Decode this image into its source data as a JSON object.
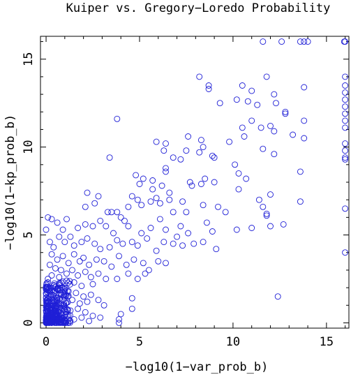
{
  "colors": {
    "marker": "#1f1fd6",
    "axis": "#000000",
    "background": "#ffffff"
  },
  "chart_data": {
    "type": "scatter",
    "title": "Kuiper vs. Gregory−Loredo Probability",
    "xlabel": "−log10(1−var_prob_b)",
    "ylabel": "−log10(1−kp_prob_b)",
    "xlim": [
      -0.3,
      16.2
    ],
    "ylim": [
      -0.3,
      16.3
    ],
    "xticks": [
      0,
      5,
      10,
      15
    ],
    "yticks": [
      0,
      5,
      10,
      15
    ],
    "grid": false,
    "legend": "none",
    "marker": "open-circle",
    "points": [
      [
        11.6,
        16.0
      ],
      [
        12.6,
        16.0
      ],
      [
        13.6,
        16.0
      ],
      [
        13.8,
        16.0
      ],
      [
        14.0,
        16.0
      ],
      [
        16.0,
        16.0
      ],
      [
        15.95,
        16.0
      ],
      [
        8.2,
        14.0
      ],
      [
        11.8,
        14.0
      ],
      [
        8.7,
        13.5
      ],
      [
        8.7,
        13.3
      ],
      [
        10.5,
        13.5
      ],
      [
        11.0,
        13.2
      ],
      [
        12.2,
        13.0
      ],
      [
        13.8,
        13.4
      ],
      [
        16.0,
        14.0
      ],
      [
        16.0,
        13.5
      ],
      [
        16.0,
        13.1
      ],
      [
        16.0,
        12.7
      ],
      [
        16.0,
        12.3
      ],
      [
        16.0,
        11.9
      ],
      [
        16.0,
        11.5
      ],
      [
        16.0,
        11.1
      ],
      [
        16.0,
        10.2
      ],
      [
        16.0,
        9.8
      ],
      [
        16.0,
        9.4
      ],
      [
        16.0,
        9.3
      ],
      [
        16.0,
        6.5
      ],
      [
        16.0,
        4.0
      ],
      [
        9.3,
        12.5
      ],
      [
        10.2,
        12.7
      ],
      [
        10.8,
        12.6
      ],
      [
        11.3,
        12.4
      ],
      [
        12.3,
        12.5
      ],
      [
        12.8,
        12.0
      ],
      [
        12.8,
        11.9
      ],
      [
        13.8,
        11.5
      ],
      [
        3.8,
        11.6
      ],
      [
        7.6,
        10.6
      ],
      [
        8.3,
        10.4
      ],
      [
        8.4,
        10.0
      ],
      [
        9.8,
        10.3
      ],
      [
        10.5,
        11.1
      ],
      [
        11.0,
        11.5
      ],
      [
        11.5,
        11.1
      ],
      [
        12.0,
        11.2
      ],
      [
        12.2,
        10.9
      ],
      [
        13.2,
        10.7
      ],
      [
        13.8,
        10.5
      ],
      [
        10.6,
        10.6
      ],
      [
        5.9,
        10.3
      ],
      [
        6.4,
        10.2
      ],
      [
        6.3,
        9.8
      ],
      [
        7.5,
        9.8
      ],
      [
        6.8,
        9.4
      ],
      [
        7.2,
        9.3
      ],
      [
        8.2,
        9.7
      ],
      [
        8.9,
        9.5
      ],
      [
        9.0,
        9.4
      ],
      [
        10.1,
        9.0
      ],
      [
        11.6,
        9.9
      ],
      [
        12.2,
        9.6
      ],
      [
        13.6,
        8.6
      ],
      [
        3.4,
        9.4
      ],
      [
        4.8,
        8.4
      ],
      [
        5.2,
        8.2
      ],
      [
        5.7,
        8.1
      ],
      [
        6.4,
        8.8
      ],
      [
        6.4,
        8.6
      ],
      [
        5.0,
        7.9
      ],
      [
        5.7,
        7.6
      ],
      [
        6.2,
        7.8
      ],
      [
        6.6,
        7.4
      ],
      [
        7.7,
        8.0
      ],
      [
        7.8,
        7.8
      ],
      [
        8.3,
        7.9
      ],
      [
        8.5,
        8.2
      ],
      [
        9.0,
        8.0
      ],
      [
        10.3,
        8.5
      ],
      [
        10.7,
        8.2
      ],
      [
        2.2,
        7.4
      ],
      [
        2.1,
        6.6
      ],
      [
        2.6,
        6.8
      ],
      [
        2.8,
        7.2
      ],
      [
        3.3,
        6.3
      ],
      [
        3.5,
        6.3
      ],
      [
        3.8,
        6.3
      ],
      [
        4.0,
        6.0
      ],
      [
        4.4,
        6.6
      ],
      [
        4.6,
        7.2
      ],
      [
        4.9,
        7.0
      ],
      [
        5.1,
        6.7
      ],
      [
        5.6,
        6.9
      ],
      [
        5.9,
        7.1
      ],
      [
        6.1,
        6.8
      ],
      [
        6.6,
        7.0
      ],
      [
        6.8,
        6.3
      ],
      [
        7.3,
        6.9
      ],
      [
        7.5,
        6.3
      ],
      [
        8.4,
        6.7
      ],
      [
        8.6,
        5.7
      ],
      [
        9.2,
        6.6
      ],
      [
        10.3,
        7.6
      ],
      [
        11.6,
        6.6
      ],
      [
        11.8,
        6.1
      ],
      [
        12.0,
        7.3
      ],
      [
        12.0,
        5.5
      ],
      [
        12.7,
        5.6
      ],
      [
        13.6,
        6.9
      ],
      [
        11.8,
        6.2
      ],
      [
        11.4,
        7.0
      ],
      [
        0.1,
        6.0
      ],
      [
        0.3,
        5.9
      ],
      [
        0.6,
        5.7
      ],
      [
        1.1,
        5.9
      ],
      [
        0.9,
        5.3
      ],
      [
        1.7,
        5.4
      ],
      [
        2.1,
        5.6
      ],
      [
        2.5,
        5.5
      ],
      [
        2.9,
        5.8
      ],
      [
        3.2,
        5.5
      ],
      [
        3.6,
        5.1
      ],
      [
        4.2,
        5.8
      ],
      [
        4.4,
        5.5
      ],
      [
        5.1,
        5.1
      ],
      [
        5.6,
        5.4
      ],
      [
        6.1,
        5.9
      ],
      [
        6.4,
        5.3
      ],
      [
        7.0,
        4.9
      ],
      [
        7.2,
        5.5
      ],
      [
        7.6,
        5.1
      ],
      [
        8.4,
        4.6
      ],
      [
        8.9,
        5.2
      ],
      [
        9.6,
        6.3
      ],
      [
        10.2,
        5.3
      ],
      [
        11.0,
        5.4
      ],
      [
        9.1,
        4.2
      ],
      [
        0.0,
        5.3
      ],
      [
        0.2,
        4.6
      ],
      [
        0.4,
        4.3
      ],
      [
        0.7,
        4.9
      ],
      [
        1.0,
        4.6
      ],
      [
        1.3,
        4.9
      ],
      [
        1.5,
        4.4
      ],
      [
        1.9,
        4.6
      ],
      [
        2.2,
        4.8
      ],
      [
        2.6,
        4.5
      ],
      [
        2.9,
        4.2
      ],
      [
        3.4,
        4.3
      ],
      [
        3.8,
        4.7
      ],
      [
        4.1,
        4.5
      ],
      [
        4.6,
        4.6
      ],
      [
        4.9,
        4.4
      ],
      [
        5.4,
        4.8
      ],
      [
        5.9,
        4.1
      ],
      [
        6.3,
        4.6
      ],
      [
        6.8,
        4.5
      ],
      [
        7.3,
        4.4
      ],
      [
        7.9,
        4.5
      ],
      [
        0.3,
        3.9
      ],
      [
        0.6,
        3.6
      ],
      [
        0.9,
        3.8
      ],
      [
        1.2,
        3.4
      ],
      [
        1.5,
        3.9
      ],
      [
        1.8,
        3.5
      ],
      [
        2.0,
        3.7
      ],
      [
        2.3,
        3.3
      ],
      [
        2.7,
        3.6
      ],
      [
        3.1,
        3.5
      ],
      [
        3.5,
        3.2
      ],
      [
        3.9,
        3.8
      ],
      [
        4.3,
        3.3
      ],
      [
        4.7,
        3.6
      ],
      [
        5.2,
        3.4
      ],
      [
        5.5,
        3.0
      ],
      [
        6.0,
        3.5
      ],
      [
        6.4,
        3.4
      ],
      [
        4.4,
        2.8
      ],
      [
        4.9,
        2.5
      ],
      [
        5.3,
        2.8
      ],
      [
        3.8,
        2.5
      ],
      [
        0.2,
        3.3
      ],
      [
        0.5,
        3.1
      ],
      [
        0.8,
        3.0
      ],
      [
        1.1,
        2.8
      ],
      [
        1.4,
        3.0
      ],
      [
        1.7,
        2.7
      ],
      [
        2.1,
        2.9
      ],
      [
        2.4,
        2.6
      ],
      [
        2.8,
        2.8
      ],
      [
        3.2,
        2.5
      ],
      [
        2.5,
        2.2
      ],
      [
        1.9,
        2.1
      ],
      [
        1.5,
        2.3
      ],
      [
        1.1,
        2.4
      ],
      [
        0.7,
        2.6
      ],
      [
        0.3,
        2.7
      ],
      [
        0.1,
        2.3
      ],
      [
        0.4,
        2.1
      ],
      [
        0.6,
        1.9
      ],
      [
        0.9,
        2.0
      ],
      [
        1.2,
        1.8
      ],
      [
        1.6,
        1.7
      ],
      [
        2.0,
        1.5
      ],
      [
        2.4,
        1.6
      ],
      [
        2.8,
        1.3
      ],
      [
        3.1,
        1.0
      ],
      [
        2.2,
        1.2
      ],
      [
        1.8,
        1.1
      ],
      [
        1.4,
        1.3
      ],
      [
        1.0,
        1.5
      ],
      [
        0.6,
        1.4
      ],
      [
        0.3,
        1.6
      ],
      [
        0.1,
        1.2
      ],
      [
        0.4,
        1.0
      ],
      [
        0.7,
        1.1
      ],
      [
        1.0,
        0.9
      ],
      [
        1.3,
        0.7
      ],
      [
        1.7,
        0.8
      ],
      [
        2.1,
        0.6
      ],
      [
        2.5,
        0.4
      ],
      [
        2.9,
        0.3
      ],
      [
        0.5,
        0.7
      ],
      [
        0.8,
        0.5
      ],
      [
        1.2,
        0.4
      ],
      [
        1.5,
        0.2
      ],
      [
        1.9,
        0.3
      ],
      [
        2.3,
        0.1
      ],
      [
        0.3,
        0.3
      ],
      [
        0.0,
        0.0
      ],
      [
        0.05,
        0.05
      ],
      [
        0.1,
        0.1
      ],
      [
        0.15,
        0.0
      ],
      [
        0.2,
        0.2
      ],
      [
        0.25,
        0.1
      ],
      [
        0.3,
        0.0
      ],
      [
        0.35,
        0.3
      ],
      [
        0.4,
        0.15
      ],
      [
        0.45,
        0.05
      ],
      [
        0.5,
        0.25
      ],
      [
        0.55,
        0.0
      ],
      [
        0.6,
        0.35
      ],
      [
        0.65,
        0.1
      ],
      [
        0.7,
        0.2
      ],
      [
        0.75,
        0.05
      ],
      [
        0.8,
        0.3
      ],
      [
        0.85,
        0.15
      ],
      [
        0.9,
        0.0
      ],
      [
        1.0,
        0.1
      ],
      [
        0.05,
        0.4
      ],
      [
        0.1,
        0.6
      ],
      [
        0.15,
        0.8
      ],
      [
        0.2,
        1.0
      ],
      [
        0.25,
        0.5
      ],
      [
        0.3,
        0.9
      ],
      [
        0.35,
        0.7
      ],
      [
        0.4,
        1.2
      ],
      [
        0.45,
        0.45
      ],
      [
        0.5,
        0.85
      ],
      [
        0.55,
        0.6
      ],
      [
        0.6,
        1.05
      ],
      [
        0.0,
        0.7
      ],
      [
        0.05,
        1.1
      ],
      [
        0.1,
        1.4
      ],
      [
        0.15,
        1.8
      ],
      [
        0.2,
        1.5
      ],
      [
        0.25,
        2.0
      ],
      [
        0.0,
        1.9
      ],
      [
        0.1,
        2.5
      ],
      [
        0.0,
        0.3
      ],
      [
        0.1,
        0.35
      ],
      [
        0.2,
        0.45
      ],
      [
        0.3,
        0.55
      ],
      [
        0.4,
        0.65
      ],
      [
        0.05,
        0.2
      ],
      [
        0.15,
        0.3
      ],
      [
        0.25,
        0.25
      ],
      [
        0.35,
        0.45
      ],
      [
        0.45,
        0.35
      ],
      [
        0.12,
        0.15
      ],
      [
        0.22,
        0.05
      ],
      [
        0.32,
        0.18
      ],
      [
        0.42,
        0.28
      ],
      [
        0.52,
        0.12
      ],
      [
        3.9,
        0.2
      ],
      [
        4.0,
        0.5
      ],
      [
        4.6,
        1.4
      ],
      [
        4.6,
        0.8
      ],
      [
        12.4,
        1.5
      ],
      [
        3.9,
        0.0
      ]
    ]
  }
}
